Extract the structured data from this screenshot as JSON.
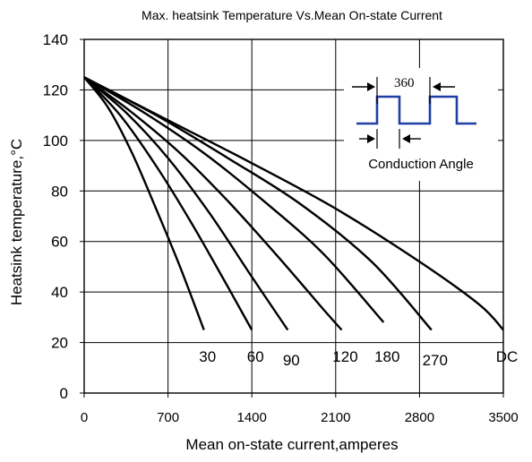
{
  "chart_data": {
    "type": "line",
    "title": "Max. heatsink Temperature Vs.Mean On-state Current",
    "xlabel": "Mean on-state current,amperes",
    "ylabel": "Heatsink temperature,°C",
    "xlim": [
      0,
      3500
    ],
    "ylim": [
      0,
      140
    ],
    "x_ticks": [
      "0",
      "700",
      "1400",
      "2100",
      "2800",
      "3500"
    ],
    "y_ticks": [
      "0",
      "20",
      "40",
      "60",
      "80",
      "100",
      "120",
      "140"
    ],
    "grid": true,
    "series": [
      {
        "name": "30",
        "x": [
          0,
          200,
          400,
          600,
          800,
          1000
        ],
        "y": [
          125,
          113,
          95,
          73,
          50,
          25
        ]
      },
      {
        "name": "60",
        "x": [
          0,
          300,
          600,
          900,
          1200,
          1400
        ],
        "y": [
          125,
          110,
          90,
          67,
          42,
          25
        ]
      },
      {
        "name": "90",
        "x": [
          0,
          350,
          700,
          1050,
          1400,
          1700
        ],
        "y": [
          125,
          111,
          93,
          71,
          46,
          25
        ]
      },
      {
        "name": "120",
        "x": [
          0,
          400,
          800,
          1200,
          1600,
          2000,
          2150
        ],
        "y": [
          125,
          111,
          95,
          76,
          55,
          33,
          25
        ]
      },
      {
        "name": "180",
        "x": [
          0,
          500,
          1000,
          1500,
          2000,
          2500
        ],
        "y": [
          125,
          111,
          95,
          76,
          55,
          28
        ]
      },
      {
        "name": "270",
        "x": [
          0,
          600,
          1200,
          1800,
          2400,
          2900
        ],
        "y": [
          125,
          110,
          93,
          75,
          52,
          25
        ]
      },
      {
        "name": "DC",
        "x": [
          0,
          700,
          1400,
          2100,
          2800,
          3300,
          3500
        ],
        "y": [
          125,
          108,
          91,
          73,
          52,
          35,
          25
        ]
      }
    ],
    "inset": {
      "angle_label": "360",
      "caption": "Conduction Angle",
      "wave_color": "#1f3fa6"
    }
  }
}
